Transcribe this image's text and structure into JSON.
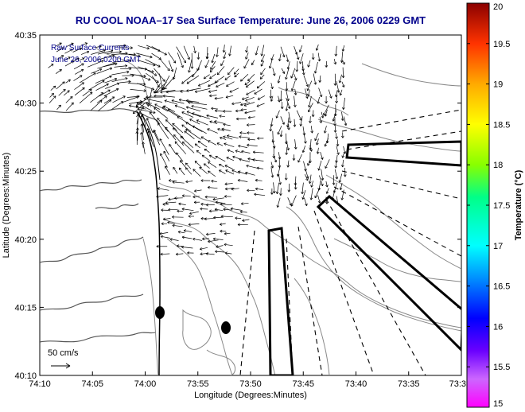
{
  "title": "RU COOL   NOAA–17  Sea Surface Temperature:  June 26, 2006 0229 GMT",
  "overlay": {
    "line1": "Raw Surface Currents",
    "line2": "June 26, 2006 0200 GMT"
  },
  "scale_label": "50 cm/s",
  "axes": {
    "xlabel": "Longitude (Degrees:Minutes)",
    "ylabel": "Latitude (Degrees:Minutes)",
    "x_ticks": [
      "74:10",
      "74:05",
      "74:00",
      "73:55",
      "73:50",
      "73:45",
      "73:40",
      "73:35",
      "73:3"
    ],
    "y_ticks": [
      "40:35",
      "40:30",
      "40:25",
      "40:20",
      "40:15",
      "40:10"
    ]
  },
  "colorbar": {
    "label": "Temperature (°C)",
    "ticks": [
      "20",
      "19.5",
      "19",
      "18.5",
      "18",
      "17.5",
      "17",
      "16.5",
      "16",
      "15.5",
      "15"
    ],
    "range": [
      15,
      20
    ]
  },
  "colors": {
    "title": "#00008b",
    "land": "#ffffff",
    "water": "#ffffff",
    "contours": "#888888"
  }
}
